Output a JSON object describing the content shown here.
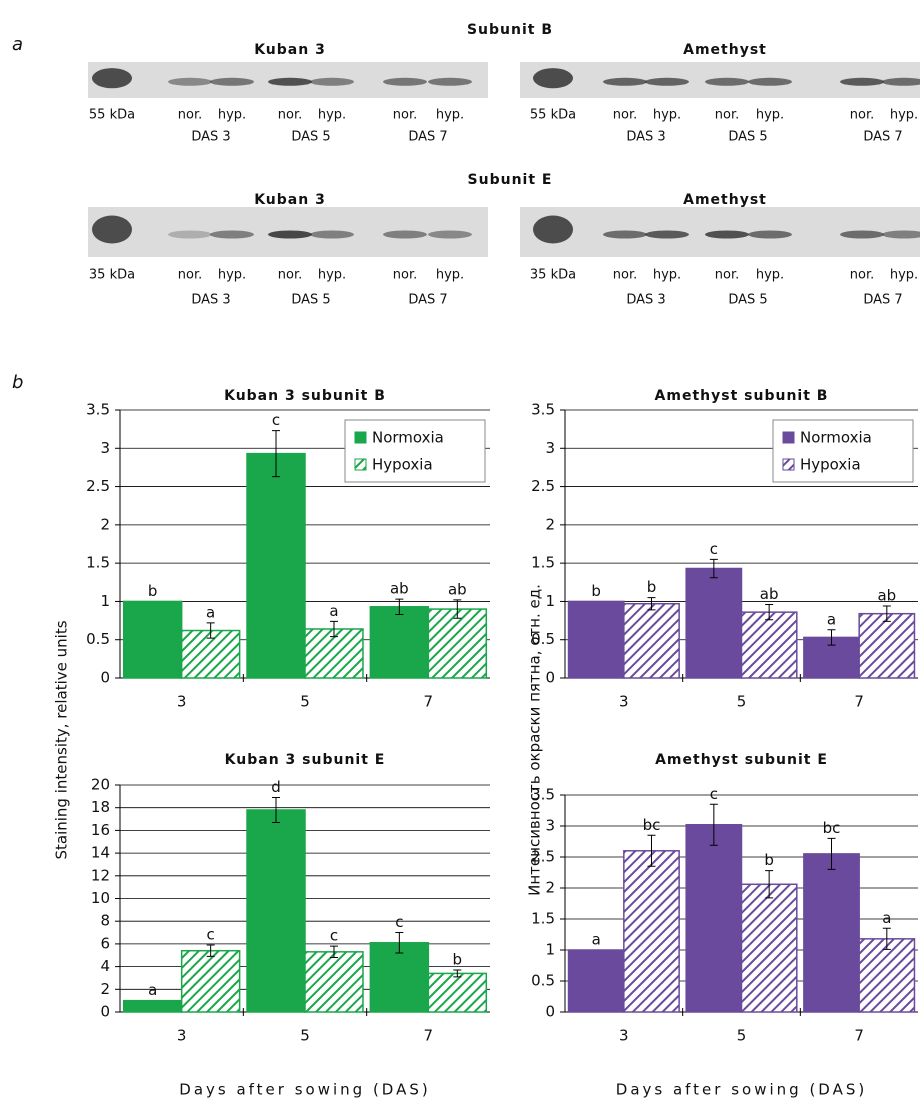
{
  "panel_labels": [
    "a",
    "b"
  ],
  "blots": [
    {
      "title": "Subunit B",
      "panels": [
        {
          "name": "Kuban 3",
          "marker": "55 kDa",
          "lanes": [
            "nor.",
            "hyp.",
            "nor.",
            "hyp.",
            "nor.",
            "hyp."
          ],
          "groups": [
            "DAS 3",
            "DAS 5",
            "DAS 7"
          ]
        },
        {
          "name": "Amethyst",
          "marker": "55 kDa",
          "lanes": [
            "nor.",
            "hyp.",
            "nor.",
            "hyp.",
            "nor.",
            "hyp."
          ],
          "groups": [
            "DAS 3",
            "DAS 5",
            "DAS 7"
          ]
        }
      ]
    },
    {
      "title": "Subunit E",
      "panels": [
        {
          "name": "Kuban 3",
          "marker": "35 kDa",
          "lanes": [
            "nor.",
            "hyp.",
            "nor.",
            "hyp.",
            "nor.",
            "hyp."
          ],
          "groups": [
            "DAS 3",
            "DAS 5",
            "DAS 7"
          ]
        },
        {
          "name": "Amethyst",
          "marker": "35 kDa",
          "lanes": [
            "nor.",
            "hyp.",
            "nor.",
            "hyp.",
            "nor.",
            "hyp."
          ],
          "groups": [
            "DAS 3",
            "DAS 5",
            "DAS 7"
          ]
        }
      ]
    }
  ],
  "chart_data": [
    {
      "type": "bar",
      "title": "Kuban 3 subunit B",
      "ylabel": "Staining intensity, relative units",
      "categories": [
        "3",
        "5",
        "7"
      ],
      "ylim": [
        0,
        3.5
      ],
      "yticks": [
        0,
        0.5,
        1,
        1.5,
        2,
        2.5,
        3,
        3.5
      ],
      "grid": true,
      "legend": "upper right",
      "series": [
        {
          "name": "Normoxia",
          "color": "#1aa64a",
          "hatch": false,
          "values": [
            1,
            2.93,
            0.93
          ],
          "errors": [
            0,
            0.3,
            0.1
          ],
          "annotations": [
            "b",
            "c",
            "ab"
          ]
        },
        {
          "name": "Hypoxia",
          "color": "#1aa64a",
          "hatch": true,
          "values": [
            0.62,
            0.64,
            0.9
          ],
          "errors": [
            0.1,
            0.1,
            0.12
          ],
          "annotations": [
            "a",
            "a",
            "ab"
          ]
        }
      ]
    },
    {
      "type": "bar",
      "title": "Amethyst subunit B",
      "ylabel": "Интенсивность окраски пятна, отн. ед.",
      "categories": [
        "3",
        "5",
        "7"
      ],
      "ylim": [
        0,
        3.5
      ],
      "yticks": [
        0,
        0.5,
        1,
        1.5,
        2,
        2.5,
        3,
        3.5
      ],
      "grid": true,
      "legend": "upper right",
      "series": [
        {
          "name": "Normoxia",
          "color": "#6a4a9c",
          "hatch": false,
          "values": [
            1,
            1.43,
            0.53
          ],
          "errors": [
            0,
            0.12,
            0.1
          ],
          "annotations": [
            "b",
            "c",
            "a"
          ]
        },
        {
          "name": "Hypoxia",
          "color": "#6a4a9c",
          "hatch": true,
          "values": [
            0.97,
            0.86,
            0.84
          ],
          "errors": [
            0.08,
            0.1,
            0.1
          ],
          "annotations": [
            "b",
            "ab",
            "ab"
          ]
        }
      ]
    },
    {
      "type": "bar",
      "title": "Kuban 3 subunit E",
      "xlabel": "Days after sowing (DAS)",
      "categories": [
        "3",
        "5",
        "7"
      ],
      "ylim": [
        0,
        20
      ],
      "yticks": [
        0,
        2,
        4,
        6,
        8,
        10,
        12,
        14,
        16,
        18,
        20
      ],
      "grid": true,
      "series": [
        {
          "color": "#1aa64a",
          "hatch": false,
          "values": [
            1,
            17.8,
            6.1
          ],
          "errors": [
            0,
            1.1,
            0.9
          ],
          "annotations": [
            "a",
            "d",
            "c"
          ]
        },
        {
          "color": "#1aa64a",
          "hatch": true,
          "values": [
            5.4,
            5.3,
            3.4
          ],
          "errors": [
            0.5,
            0.5,
            0.3
          ],
          "annotations": [
            "c",
            "c",
            "b"
          ]
        }
      ]
    },
    {
      "type": "bar",
      "title": "Amethyst subunit E",
      "xlabel": "Days after sowing (DAS)",
      "categories": [
        "3",
        "5",
        "7"
      ],
      "ylim": [
        0,
        3.5
      ],
      "yticks": [
        0,
        0.5,
        1,
        1.5,
        2,
        2.5,
        3,
        3.5
      ],
      "grid": true,
      "series": [
        {
          "color": "#6a4a9c",
          "hatch": false,
          "values": [
            1,
            3.02,
            2.55
          ],
          "errors": [
            0,
            0.33,
            0.25
          ],
          "annotations": [
            "a",
            "c",
            "bc"
          ]
        },
        {
          "color": "#6a4a9c",
          "hatch": true,
          "values": [
            2.6,
            2.06,
            1.18
          ],
          "errors": [
            0.25,
            0.22,
            0.17
          ],
          "annotations": [
            "bc",
            "b",
            "a"
          ]
        }
      ]
    }
  ]
}
